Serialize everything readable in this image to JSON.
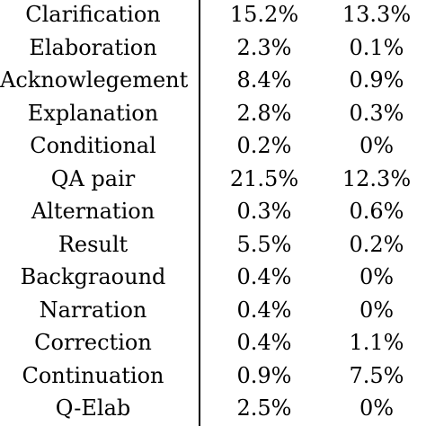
{
  "rows": [
    {
      "label": "Clarification",
      "v1": "15.2%",
      "v2": "13.3%"
    },
    {
      "label": "Elaboration",
      "v1": "2.3%",
      "v2": "0.1%"
    },
    {
      "label": "Acknowlegement",
      "v1": "8.4%",
      "v2": "0.9%"
    },
    {
      "label": "Explanation",
      "v1": "2.8%",
      "v2": "0.3%"
    },
    {
      "label": "Conditional",
      "v1": "0.2%",
      "v2": "0%"
    },
    {
      "label": "QA pair",
      "v1": "21.5%",
      "v2": "12.3%"
    },
    {
      "label": "Alternation",
      "v1": "0.3%",
      "v2": "0.6%"
    },
    {
      "label": "Result",
      "v1": "5.5%",
      "v2": "0.2%"
    },
    {
      "label": "Backgraound",
      "v1": "0.4%",
      "v2": "0%"
    },
    {
      "label": "Narration",
      "v1": "0.4%",
      "v2": "0%"
    },
    {
      "label": "Correction",
      "v1": "0.4%",
      "v2": "1.1%"
    },
    {
      "label": "Continuation",
      "v1": "0.9%",
      "v2": "7.5%"
    },
    {
      "label": "Q-Elab",
      "v1": "2.5%",
      "v2": "0%"
    }
  ]
}
